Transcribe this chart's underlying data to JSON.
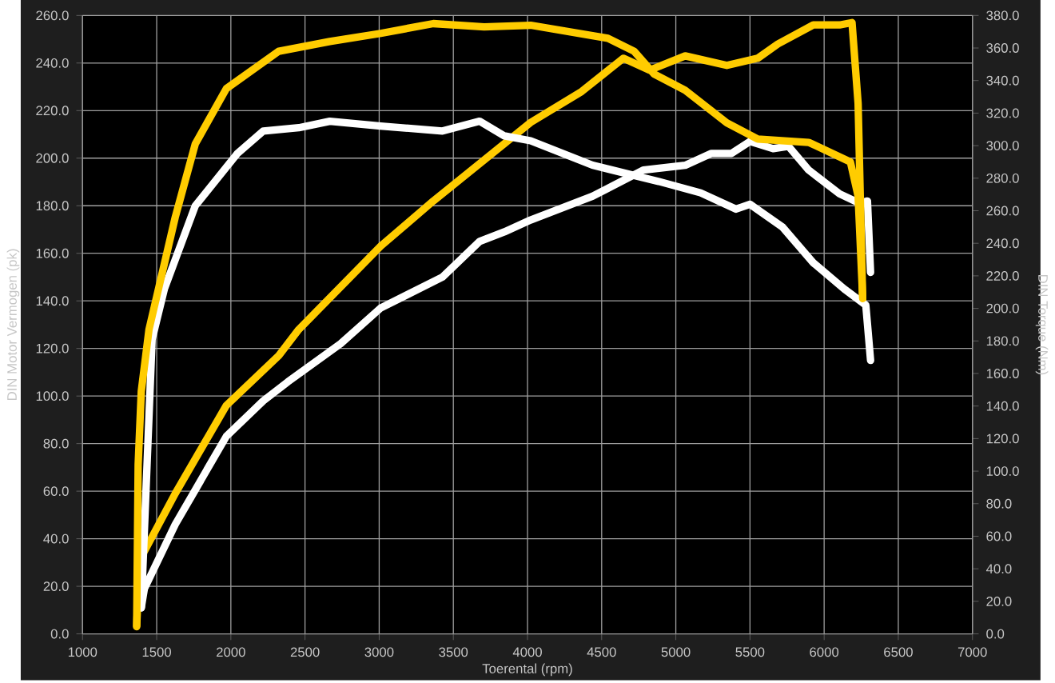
{
  "chart_data": {
    "type": "line",
    "xlabel": "Toerental (rpm)",
    "ylabel": "DIN Motor Vermogen (pk)",
    "y2label": "DIN Torque (Nm)",
    "xlim": [
      1000,
      7000
    ],
    "xticks": [
      1000,
      1500,
      2000,
      2500,
      3000,
      3500,
      4000,
      4500,
      5000,
      5500,
      6000,
      6500,
      7000
    ],
    "ylim": [
      0,
      260
    ],
    "yticks": [
      {
        "value": 0,
        "label": "0.0"
      },
      {
        "value": 20,
        "label": "20.0"
      },
      {
        "value": 40,
        "label": "40.0"
      },
      {
        "value": 60,
        "label": "60.0"
      },
      {
        "value": 80,
        "label": "80.0"
      },
      {
        "value": 100,
        "label": "100.0"
      },
      {
        "value": 120,
        "label": "120.0"
      },
      {
        "value": 140,
        "label": "140.0"
      },
      {
        "value": 160,
        "label": "160.0"
      },
      {
        "value": 180,
        "label": "180.0"
      },
      {
        "value": 200,
        "label": "200.0"
      },
      {
        "value": 220,
        "label": "220.0"
      },
      {
        "value": 240,
        "label": "240.0"
      },
      {
        "value": 260,
        "label": "260.0"
      }
    ],
    "y2lim": [
      0,
      380
    ],
    "y2ticks": [
      {
        "value": 0,
        "label": "0.0"
      },
      {
        "value": 20,
        "label": "20.0"
      },
      {
        "value": 40,
        "label": "40.0"
      },
      {
        "value": 60,
        "label": "60.0"
      },
      {
        "value": 80,
        "label": "80.0"
      },
      {
        "value": 100,
        "label": "100.0"
      },
      {
        "value": 120,
        "label": "120.0"
      },
      {
        "value": 140,
        "label": "140.0"
      },
      {
        "value": 160,
        "label": "160.0"
      },
      {
        "value": 180,
        "label": "180.0"
      },
      {
        "value": 200,
        "label": "200.0"
      },
      {
        "value": 220,
        "label": "220.0"
      },
      {
        "value": 240,
        "label": "240.0"
      },
      {
        "value": 260,
        "label": "260.0"
      },
      {
        "value": 280,
        "label": "280.0"
      },
      {
        "value": 300,
        "label": "300.0"
      },
      {
        "value": 320,
        "label": "320.0"
      },
      {
        "value": 340,
        "label": "340.0"
      },
      {
        "value": 360,
        "label": "360.0"
      },
      {
        "value": 380,
        "label": "380.0"
      }
    ],
    "grid": true,
    "series": [
      {
        "color": "#ffffff",
        "x": [
          1396,
          1417,
          1625,
          1969,
          2219,
          2385,
          2740,
          3010,
          3427,
          3677,
          3844,
          4021,
          4438,
          4781,
          5063,
          5240,
          5375,
          5500,
          5656,
          5760,
          5896,
          6104,
          6240,
          6292,
          6313
        ],
        "values": [
          11,
          19,
          46,
          83,
          98,
          106,
          122,
          137,
          150,
          165,
          169,
          174,
          184,
          195,
          197,
          202,
          202,
          207,
          204,
          205,
          195,
          185,
          181,
          182,
          152
        ]
      },
      {
        "color": "#ffffff",
        "axis": "y2",
        "x": [
          1396,
          1469,
          1552,
          1760,
          2042,
          2219,
          2458,
          2667,
          3010,
          3427,
          3677,
          3844,
          4021,
          4438,
          4885,
          5167,
          5406,
          5500,
          5719,
          5927,
          6135,
          6281,
          6313
        ],
        "values": [
          16,
          181,
          212,
          263,
          295,
          309,
          311,
          315,
          312,
          309,
          315,
          306,
          303,
          288,
          278,
          271,
          261,
          264,
          250,
          228,
          212,
          202,
          168
        ]
      },
      {
        "color": "#ffcc00",
        "x": [
          1365,
          1385,
          1625,
          1969,
          2323,
          2458,
          3010,
          3365,
          4021,
          4365,
          4646,
          4823,
          5063,
          5344,
          5552,
          5688,
          5927,
          6104,
          6188,
          6229,
          6260
        ],
        "values": [
          3,
          31,
          59,
          96,
          117,
          128,
          163,
          182,
          215,
          228,
          242,
          237,
          243,
          239,
          242,
          248,
          256,
          256,
          257,
          223,
          140
        ]
      },
      {
        "color": "#ffcc00",
        "axis": "y2",
        "x": [
          1365,
          1375,
          1396,
          1448,
          1625,
          1760,
          1969,
          2323,
          2667,
          3010,
          3365,
          3708,
          4021,
          4542,
          4719,
          4854,
          5063,
          5344,
          5552,
          5896,
          6177,
          6229,
          6260
        ],
        "values": [
          5,
          104,
          149,
          187,
          256,
          301,
          335,
          358,
          364,
          369,
          375,
          373,
          374,
          366,
          358,
          344,
          334,
          314,
          304,
          302,
          290,
          269,
          206
        ]
      }
    ]
  }
}
